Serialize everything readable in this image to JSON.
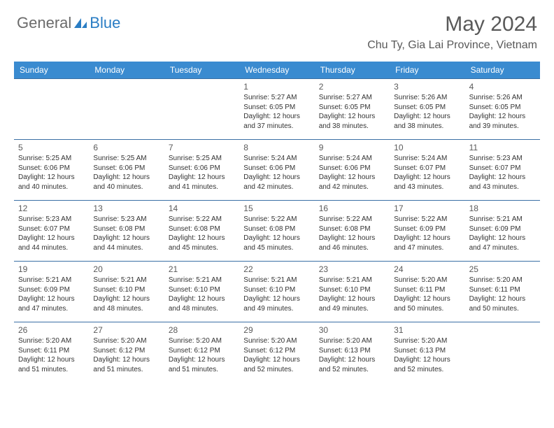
{
  "brand": {
    "word1": "General",
    "word2": "Blue",
    "word1_color": "#6b6b6b",
    "word2_color": "#2a7dc4",
    "shape_color": "#2a7dc4"
  },
  "header": {
    "month_title": "May 2024",
    "location": "Chu Ty, Gia Lai Province, Vietnam",
    "title_color": "#595959"
  },
  "calendar": {
    "header_bg": "#3a8bd0",
    "header_text_color": "#ffffff",
    "rule_color": "#3a6fa5",
    "weekdays": [
      "Sunday",
      "Monday",
      "Tuesday",
      "Wednesday",
      "Thursday",
      "Friday",
      "Saturday"
    ],
    "day_num_color": "#5a5a5a",
    "text_color": "#333333",
    "day_num_fontsize": 12,
    "body_fontsize": 10,
    "weeks": [
      [
        null,
        null,
        null,
        {
          "n": "1",
          "sr": "5:27 AM",
          "ss": "6:05 PM",
          "dl": "12 hours and 37 minutes."
        },
        {
          "n": "2",
          "sr": "5:27 AM",
          "ss": "6:05 PM",
          "dl": "12 hours and 38 minutes."
        },
        {
          "n": "3",
          "sr": "5:26 AM",
          "ss": "6:05 PM",
          "dl": "12 hours and 38 minutes."
        },
        {
          "n": "4",
          "sr": "5:26 AM",
          "ss": "6:05 PM",
          "dl": "12 hours and 39 minutes."
        }
      ],
      [
        {
          "n": "5",
          "sr": "5:25 AM",
          "ss": "6:06 PM",
          "dl": "12 hours and 40 minutes."
        },
        {
          "n": "6",
          "sr": "5:25 AM",
          "ss": "6:06 PM",
          "dl": "12 hours and 40 minutes."
        },
        {
          "n": "7",
          "sr": "5:25 AM",
          "ss": "6:06 PM",
          "dl": "12 hours and 41 minutes."
        },
        {
          "n": "8",
          "sr": "5:24 AM",
          "ss": "6:06 PM",
          "dl": "12 hours and 42 minutes."
        },
        {
          "n": "9",
          "sr": "5:24 AM",
          "ss": "6:06 PM",
          "dl": "12 hours and 42 minutes."
        },
        {
          "n": "10",
          "sr": "5:24 AM",
          "ss": "6:07 PM",
          "dl": "12 hours and 43 minutes."
        },
        {
          "n": "11",
          "sr": "5:23 AM",
          "ss": "6:07 PM",
          "dl": "12 hours and 43 minutes."
        }
      ],
      [
        {
          "n": "12",
          "sr": "5:23 AM",
          "ss": "6:07 PM",
          "dl": "12 hours and 44 minutes."
        },
        {
          "n": "13",
          "sr": "5:23 AM",
          "ss": "6:08 PM",
          "dl": "12 hours and 44 minutes."
        },
        {
          "n": "14",
          "sr": "5:22 AM",
          "ss": "6:08 PM",
          "dl": "12 hours and 45 minutes."
        },
        {
          "n": "15",
          "sr": "5:22 AM",
          "ss": "6:08 PM",
          "dl": "12 hours and 45 minutes."
        },
        {
          "n": "16",
          "sr": "5:22 AM",
          "ss": "6:08 PM",
          "dl": "12 hours and 46 minutes."
        },
        {
          "n": "17",
          "sr": "5:22 AM",
          "ss": "6:09 PM",
          "dl": "12 hours and 47 minutes."
        },
        {
          "n": "18",
          "sr": "5:21 AM",
          "ss": "6:09 PM",
          "dl": "12 hours and 47 minutes."
        }
      ],
      [
        {
          "n": "19",
          "sr": "5:21 AM",
          "ss": "6:09 PM",
          "dl": "12 hours and 47 minutes."
        },
        {
          "n": "20",
          "sr": "5:21 AM",
          "ss": "6:10 PM",
          "dl": "12 hours and 48 minutes."
        },
        {
          "n": "21",
          "sr": "5:21 AM",
          "ss": "6:10 PM",
          "dl": "12 hours and 48 minutes."
        },
        {
          "n": "22",
          "sr": "5:21 AM",
          "ss": "6:10 PM",
          "dl": "12 hours and 49 minutes."
        },
        {
          "n": "23",
          "sr": "5:21 AM",
          "ss": "6:10 PM",
          "dl": "12 hours and 49 minutes."
        },
        {
          "n": "24",
          "sr": "5:20 AM",
          "ss": "6:11 PM",
          "dl": "12 hours and 50 minutes."
        },
        {
          "n": "25",
          "sr": "5:20 AM",
          "ss": "6:11 PM",
          "dl": "12 hours and 50 minutes."
        }
      ],
      [
        {
          "n": "26",
          "sr": "5:20 AM",
          "ss": "6:11 PM",
          "dl": "12 hours and 51 minutes."
        },
        {
          "n": "27",
          "sr": "5:20 AM",
          "ss": "6:12 PM",
          "dl": "12 hours and 51 minutes."
        },
        {
          "n": "28",
          "sr": "5:20 AM",
          "ss": "6:12 PM",
          "dl": "12 hours and 51 minutes."
        },
        {
          "n": "29",
          "sr": "5:20 AM",
          "ss": "6:12 PM",
          "dl": "12 hours and 52 minutes."
        },
        {
          "n": "30",
          "sr": "5:20 AM",
          "ss": "6:13 PM",
          "dl": "12 hours and 52 minutes."
        },
        {
          "n": "31",
          "sr": "5:20 AM",
          "ss": "6:13 PM",
          "dl": "12 hours and 52 minutes."
        },
        null
      ]
    ],
    "labels": {
      "sunrise": "Sunrise:",
      "sunset": "Sunset:",
      "daylight": "Daylight:"
    }
  }
}
